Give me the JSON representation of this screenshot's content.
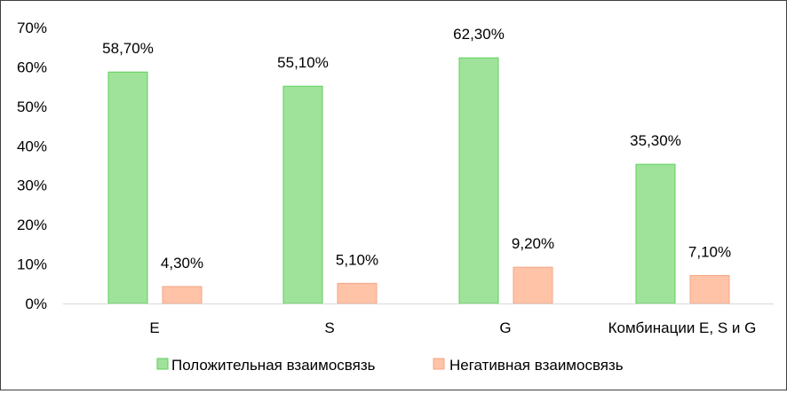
{
  "chart_data": {
    "type": "bar",
    "title": "",
    "xlabel": "",
    "ylabel": "",
    "categories": [
      "E",
      "S",
      "G",
      "Комбинации E, S и G"
    ],
    "ylim": [
      0,
      70
    ],
    "yticks": [
      0,
      10,
      20,
      30,
      40,
      50,
      60,
      70
    ],
    "ytick_labels": [
      "0%",
      "10%",
      "20%",
      "30%",
      "40%",
      "50%",
      "60%",
      "70%"
    ],
    "grid": false,
    "legend_position": "bottom",
    "series": [
      {
        "name": "Положительная взаимосвязь",
        "values": [
          58.7,
          55.1,
          62.3,
          35.3
        ],
        "labels": [
          "58,70%",
          "55,10%",
          "62,30%",
          "35,30%"
        ],
        "fill": "#9fe39a",
        "stroke": "#5fcf5a"
      },
      {
        "name": "Негативная взаимосвязь",
        "values": [
          4.3,
          5.1,
          9.2,
          7.1
        ],
        "labels": [
          "4,30%",
          "5,10%",
          "9,20%",
          "7,10%"
        ],
        "fill": "#ffc3a8",
        "stroke": "#f4a584"
      }
    ]
  }
}
